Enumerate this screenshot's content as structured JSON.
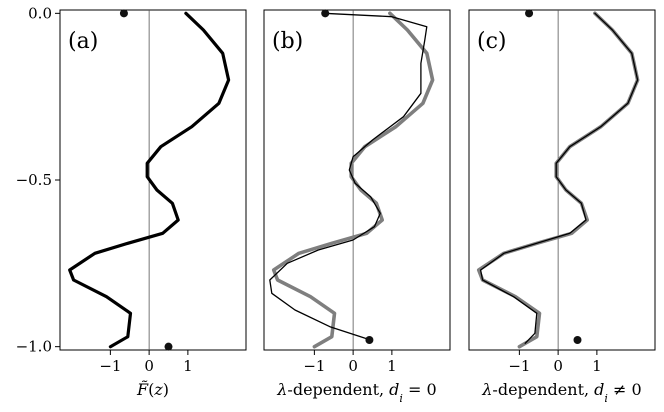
{
  "chart_data": [
    {
      "type": "line",
      "panel_label": "(a)",
      "xlabel": "F̃(z)",
      "x_ticks": [
        "−1",
        "0",
        "1"
      ],
      "y_ticks": [
        "0.0",
        "−0.5",
        "−1.0"
      ],
      "ylim": [
        -1.01,
        0.01
      ],
      "xlim": [
        -2.3,
        2.5
      ],
      "vertical_line_at_x": 0,
      "series": [
        {
          "style": "thick-black",
          "points": [
            [
              -1.0,
              -1.0
            ],
            [
              -0.55,
              -0.97
            ],
            [
              -0.48,
              -0.9
            ],
            [
              -1.1,
              -0.85
            ],
            [
              -1.95,
              -0.8
            ],
            [
              -2.05,
              -0.77
            ],
            [
              -1.4,
              -0.72
            ],
            [
              -0.55,
              -0.69
            ],
            [
              0.35,
              -0.66
            ],
            [
              0.75,
              -0.62
            ],
            [
              0.6,
              -0.57
            ],
            [
              0.2,
              -0.53
            ],
            [
              -0.05,
              -0.49
            ],
            [
              -0.05,
              -0.45
            ],
            [
              0.3,
              -0.4
            ],
            [
              1.1,
              -0.34
            ],
            [
              1.8,
              -0.27
            ],
            [
              2.05,
              -0.2
            ],
            [
              1.9,
              -0.12
            ],
            [
              1.4,
              -0.05
            ],
            [
              0.95,
              0.0
            ]
          ]
        }
      ],
      "markers": [
        [
          -0.65,
          0.0
        ],
        [
          0.5,
          -1.0
        ]
      ]
    },
    {
      "type": "line",
      "panel_label": "(b)",
      "xlabel": "λ-dependent, d_i = 0",
      "x_ticks": [
        "−1",
        "0",
        "1"
      ],
      "ylim": [
        -1.01,
        0.01
      ],
      "xlim": [
        -2.3,
        2.5
      ],
      "vertical_line_at_x": 0,
      "series": [
        {
          "style": "thick-gray",
          "points": [
            [
              -1.0,
              -1.0
            ],
            [
              -0.55,
              -0.97
            ],
            [
              -0.48,
              -0.9
            ],
            [
              -1.1,
              -0.85
            ],
            [
              -1.95,
              -0.8
            ],
            [
              -2.05,
              -0.77
            ],
            [
              -1.4,
              -0.72
            ],
            [
              -0.55,
              -0.69
            ],
            [
              0.35,
              -0.66
            ],
            [
              0.75,
              -0.62
            ],
            [
              0.6,
              -0.57
            ],
            [
              0.2,
              -0.53
            ],
            [
              -0.05,
              -0.49
            ],
            [
              -0.05,
              -0.45
            ],
            [
              0.3,
              -0.4
            ],
            [
              1.1,
              -0.34
            ],
            [
              1.8,
              -0.27
            ],
            [
              2.05,
              -0.2
            ],
            [
              1.9,
              -0.12
            ],
            [
              1.4,
              -0.05
            ],
            [
              0.95,
              0.0
            ]
          ]
        },
        {
          "style": "thin-black",
          "points": [
            [
              0.45,
              -0.98
            ],
            [
              -0.6,
              -0.94
            ],
            [
              -1.5,
              -0.89
            ],
            [
              -2.1,
              -0.84
            ],
            [
              -2.15,
              -0.8
            ],
            [
              -1.7,
              -0.75
            ],
            [
              -0.9,
              -0.71
            ],
            [
              0.0,
              -0.68
            ],
            [
              0.55,
              -0.64
            ],
            [
              0.7,
              -0.6
            ],
            [
              0.45,
              -0.55
            ],
            [
              0.05,
              -0.51
            ],
            [
              -0.1,
              -0.47
            ],
            [
              0.0,
              -0.43
            ],
            [
              0.5,
              -0.38
            ],
            [
              1.3,
              -0.31
            ],
            [
              1.75,
              -0.24
            ],
            [
              1.75,
              -0.15
            ],
            [
              1.85,
              -0.08
            ],
            [
              1.9,
              -0.04
            ],
            [
              1.0,
              -0.01
            ],
            [
              -0.75,
              0.0
            ]
          ]
        }
      ],
      "markers": [
        [
          -0.72,
          0.0
        ],
        [
          0.42,
          -0.98
        ]
      ]
    },
    {
      "type": "line",
      "panel_label": "(c)",
      "xlabel": "λ-dependent, d_i ≠ 0",
      "x_ticks": [
        "−1",
        "0",
        "1"
      ],
      "ylim": [
        -1.01,
        0.01
      ],
      "xlim": [
        -2.3,
        2.5
      ],
      "vertical_line_at_x": 0,
      "series": [
        {
          "style": "thick-gray",
          "points": [
            [
              -1.0,
              -1.0
            ],
            [
              -0.55,
              -0.97
            ],
            [
              -0.48,
              -0.9
            ],
            [
              -1.1,
              -0.85
            ],
            [
              -1.95,
              -0.8
            ],
            [
              -2.05,
              -0.77
            ],
            [
              -1.4,
              -0.72
            ],
            [
              -0.55,
              -0.69
            ],
            [
              0.35,
              -0.66
            ],
            [
              0.75,
              -0.62
            ],
            [
              0.6,
              -0.57
            ],
            [
              0.2,
              -0.53
            ],
            [
              -0.05,
              -0.49
            ],
            [
              -0.05,
              -0.45
            ],
            [
              0.3,
              -0.4
            ],
            [
              1.1,
              -0.34
            ],
            [
              1.8,
              -0.27
            ],
            [
              2.05,
              -0.2
            ],
            [
              1.9,
              -0.12
            ],
            [
              1.4,
              -0.05
            ],
            [
              0.95,
              0.0
            ]
          ]
        },
        {
          "style": "thin-black",
          "points": [
            [
              -0.85,
              -0.99
            ],
            [
              -0.6,
              -0.96
            ],
            [
              -0.55,
              -0.9
            ],
            [
              -1.15,
              -0.85
            ],
            [
              -1.95,
              -0.8
            ],
            [
              -2.0,
              -0.77
            ],
            [
              -1.4,
              -0.72
            ],
            [
              -0.55,
              -0.69
            ],
            [
              0.3,
              -0.66
            ],
            [
              0.72,
              -0.62
            ],
            [
              0.6,
              -0.57
            ],
            [
              0.2,
              -0.53
            ],
            [
              -0.05,
              -0.49
            ],
            [
              -0.05,
              -0.45
            ],
            [
              0.3,
              -0.4
            ],
            [
              1.1,
              -0.34
            ],
            [
              1.8,
              -0.27
            ],
            [
              2.05,
              -0.2
            ],
            [
              1.9,
              -0.12
            ],
            [
              1.4,
              -0.05
            ],
            [
              0.95,
              0.0
            ]
          ]
        }
      ],
      "markers": [
        [
          -0.75,
          0.0
        ],
        [
          0.5,
          -0.98
        ]
      ]
    }
  ]
}
